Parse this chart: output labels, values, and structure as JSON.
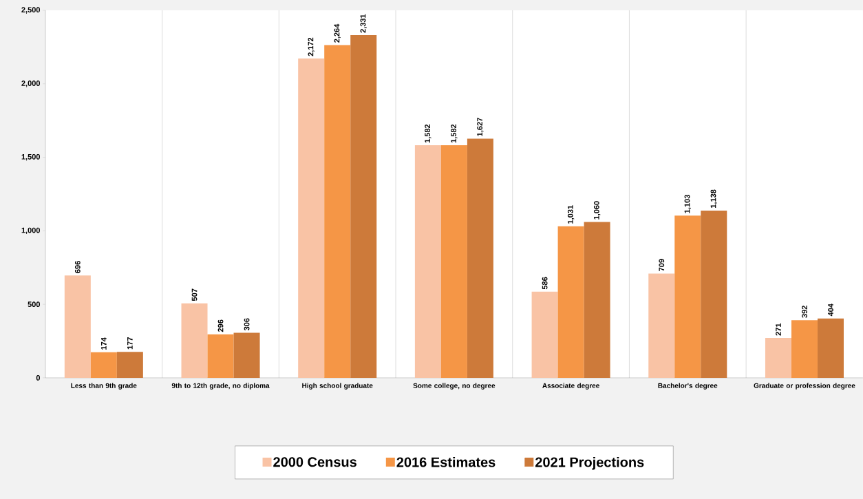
{
  "chart_data": {
    "type": "bar",
    "categories": [
      "Less than 9th grade",
      "9th to 12th grade, no diploma",
      "High school graduate",
      "Some college, no degree",
      "Associate degree",
      "Bachelor's degree",
      "Graduate or profession degree"
    ],
    "series": [
      {
        "name": "2000 Census",
        "color": "#f9c3a5",
        "values": [
          696,
          507,
          2172,
          1582,
          586,
          709,
          271
        ],
        "value_labels": [
          "696",
          "507",
          "2,172",
          "1,582",
          "586",
          "709",
          "271"
        ]
      },
      {
        "name": "2016 Estimates",
        "color": "#f59646",
        "values": [
          174,
          296,
          2264,
          1582,
          1031,
          1103,
          392
        ],
        "value_labels": [
          "174",
          "296",
          "2,264",
          "1,582",
          "1,031",
          "1,103",
          "392"
        ]
      },
      {
        "name": "2021 Projections",
        "color": "#cd7a3a",
        "values": [
          177,
          306,
          2331,
          1627,
          1060,
          1138,
          404
        ],
        "value_labels": [
          "177",
          "306",
          "2,331",
          "1,627",
          "1,060",
          "1,138",
          "404"
        ]
      }
    ],
    "ylim": [
      0,
      2500
    ],
    "yticks": [
      0,
      500,
      {
        "value": 1000,
        "label": "1,000"
      },
      {
        "value": 1500,
        "label": "1,500"
      },
      {
        "value": 2000,
        "label": "2,000"
      },
      {
        "value": 2500,
        "label": "2,500"
      }
    ],
    "legend": "bottom"
  }
}
